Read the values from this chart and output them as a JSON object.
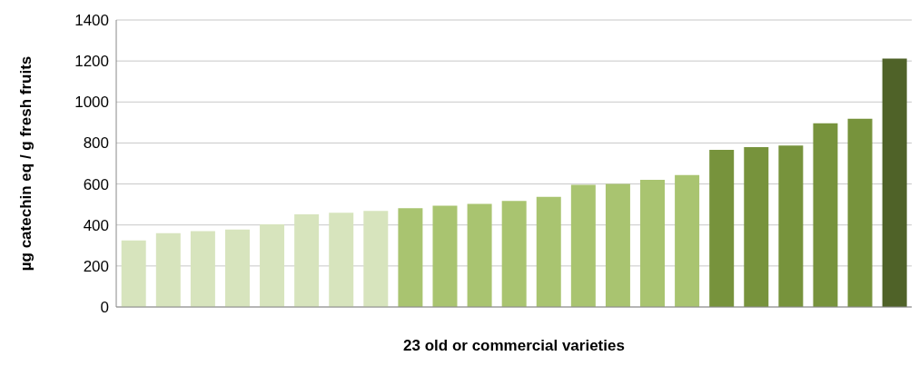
{
  "chart_data": {
    "type": "bar",
    "xlabel": "23 old or commercial varieties",
    "ylabel": "µg catechin eq / g fresh fruits",
    "categories": [
      null,
      null,
      null,
      null,
      null,
      null,
      null,
      null,
      null,
      null,
      null,
      null,
      null,
      null,
      null,
      null,
      null,
      null,
      null,
      null,
      null,
      null,
      null
    ],
    "values": [
      325,
      360,
      370,
      378,
      403,
      452,
      460,
      468,
      482,
      494,
      503,
      517,
      537,
      596,
      600,
      620,
      643,
      766,
      780,
      787,
      896,
      918,
      1212
    ],
    "colors": [
      "#d7e4bd",
      "#d7e4bd",
      "#d7e4bd",
      "#d7e4bd",
      "#d7e4bd",
      "#d7e4bd",
      "#d7e4bd",
      "#d7e4bd",
      "#a9c470",
      "#a9c470",
      "#a9c470",
      "#a9c470",
      "#a9c470",
      "#a9c470",
      "#a9c470",
      "#a9c470",
      "#a9c470",
      "#77933c",
      "#77933c",
      "#77933c",
      "#77933c",
      "#77933c",
      "#4f6228"
    ],
    "ylim": [
      0,
      1400
    ],
    "yticks": [
      0,
      200,
      400,
      600,
      800,
      1000,
      1200,
      1400
    ],
    "grid": "y",
    "legend": false
  }
}
